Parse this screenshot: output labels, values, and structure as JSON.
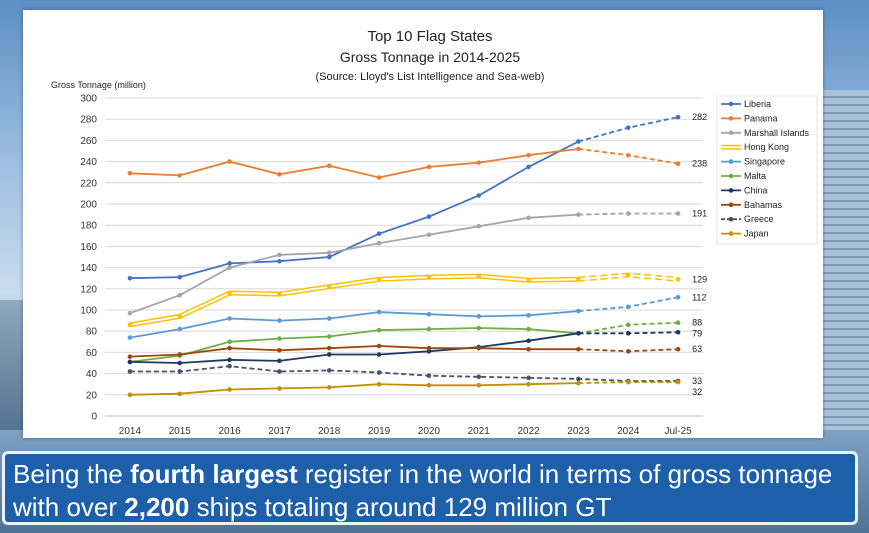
{
  "chart_data": {
    "type": "line",
    "title": "Top 10 Flag States",
    "subtitle": "Gross Tonnage in 2014-2025",
    "source": "(Source: Lloyd's List Intelligence and Sea-web)",
    "ylabel": "Gross Tonnage (million)",
    "xlabel": "",
    "ylim": [
      0,
      300
    ],
    "y_ticks": [
      0,
      20,
      40,
      60,
      80,
      100,
      120,
      140,
      160,
      180,
      200,
      220,
      240,
      260,
      280,
      300
    ],
    "categories": [
      "2014",
      "2015",
      "2016",
      "2017",
      "2018",
      "2019",
      "2020",
      "2021",
      "2022",
      "2023",
      "2024",
      "Jul-25"
    ],
    "grid": "horizontal",
    "legend_position": "right",
    "series": [
      {
        "name": "Liberia",
        "color": "#4472c4",
        "values": [
          130,
          131,
          144,
          146,
          150,
          172,
          188,
          208,
          235,
          259,
          272,
          282
        ],
        "dashed_from_index": 9,
        "end_label": "282"
      },
      {
        "name": "Panama",
        "color": "#ed7d31",
        "values": [
          229,
          227,
          240,
          228,
          236,
          225,
          235,
          239,
          246,
          252,
          246,
          238
        ],
        "dashed_from_index": 9,
        "end_label": "238"
      },
      {
        "name": "Marshall Islands",
        "color": "#a5a5a5",
        "values": [
          97,
          114,
          140,
          152,
          154,
          163,
          171,
          179,
          187,
          190,
          191,
          191
        ],
        "dashed_from_index": 9,
        "end_label": "191"
      },
      {
        "name": "Hong Kong",
        "color": "#ffc000",
        "values": [
          86,
          94,
          116,
          115,
          122,
          129,
          131,
          132,
          128,
          129,
          133,
          129
        ],
        "dashed_from_index": 9,
        "end_label": "129",
        "hollow": true
      },
      {
        "name": "Singapore",
        "color": "#5b9bd5",
        "values": [
          74,
          82,
          92,
          90,
          92,
          98,
          96,
          94,
          95,
          99,
          103,
          112
        ],
        "dashed_from_index": 9,
        "end_label": "112"
      },
      {
        "name": "Malta",
        "color": "#70ad47",
        "values": [
          51,
          57,
          70,
          73,
          75,
          81,
          82,
          83,
          82,
          78,
          86,
          88
        ],
        "dashed_from_index": 9,
        "end_label": "88"
      },
      {
        "name": "China",
        "color": "#1f3864",
        "values": [
          51,
          50,
          53,
          52,
          58,
          58,
          61,
          65,
          71,
          78,
          78,
          79
        ],
        "dashed_from_index": 9,
        "end_label": "79"
      },
      {
        "name": "Bahamas",
        "color": "#9e480e",
        "values": [
          56,
          58,
          64,
          62,
          64,
          66,
          64,
          64,
          63,
          63,
          61,
          63
        ],
        "dashed_from_index": 9,
        "end_label": "63"
      },
      {
        "name": "Greece",
        "color": "#44546a",
        "values": [
          42,
          42,
          47,
          42,
          43,
          41,
          38,
          37,
          36,
          35,
          33,
          33
        ],
        "dashed_from_index": 0,
        "end_label": "33"
      },
      {
        "name": "Japan",
        "color": "#bf9000",
        "values": [
          20,
          21,
          25,
          26,
          27,
          30,
          29,
          29,
          30,
          31,
          32,
          32
        ],
        "dashed_from_index": 9,
        "end_label": "32"
      }
    ]
  },
  "caption": {
    "part1": "Being the ",
    "bold1": "fourth largest",
    "part2": " register in the world in terms of gross tonnage with over ",
    "bold2": "2,200",
    "part3": " ships totaling around 129 million GT"
  }
}
